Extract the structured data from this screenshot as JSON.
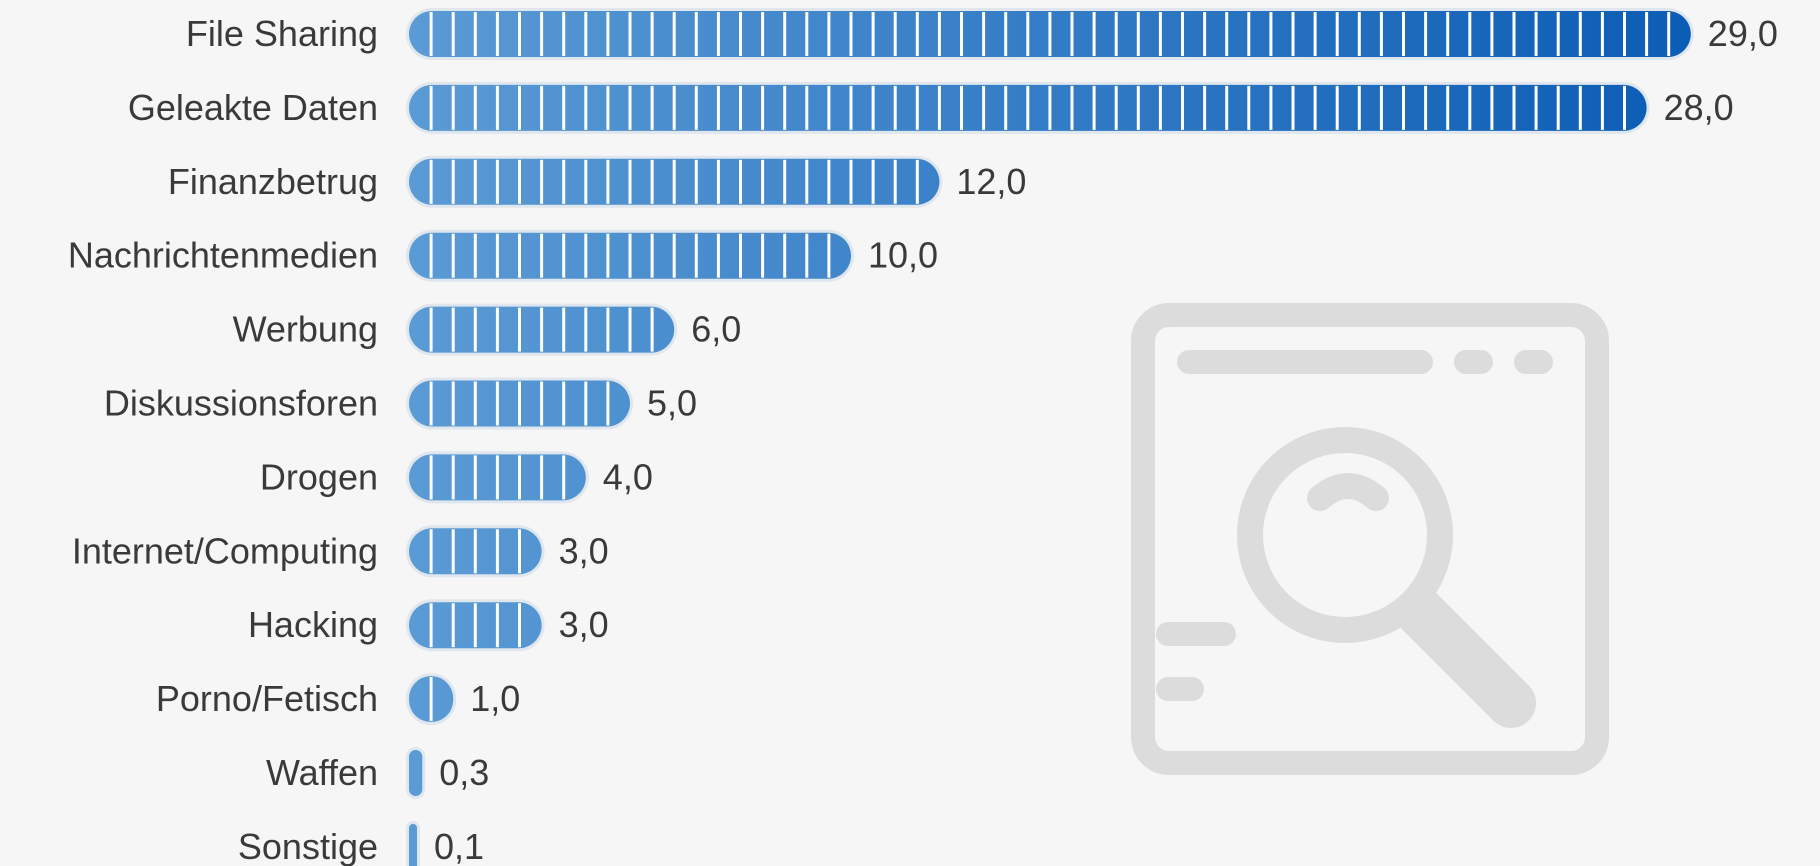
{
  "chart_data": {
    "type": "bar",
    "orientation": "horizontal",
    "categories": [
      "File Sharing",
      "Geleakte Daten",
      "Finanzbetrug",
      "Nachrichtenmedien",
      "Werbung",
      "Diskussionsforen",
      "Drogen",
      "Internet/Computing",
      "Hacking",
      "Porno/Fetisch",
      "Waffen",
      "Sonstige"
    ],
    "values": [
      29.0,
      28.0,
      12.0,
      10.0,
      6.0,
      5.0,
      4.0,
      3.0,
      3.0,
      1.0,
      0.3,
      0.1
    ],
    "value_labels": [
      "29,0",
      "28,0",
      "12,0",
      "10,0",
      "6,0",
      "5,0",
      "4,0",
      "3,0",
      "3,0",
      "1,0",
      "0,3",
      "0,1"
    ],
    "xlim": [
      0,
      29
    ],
    "grid": false,
    "legend": "none",
    "colors": {
      "bar_start": "#5b9bd5",
      "bar_end": "#0b5cb5",
      "segment_divider": "#ffffff",
      "bar_outline": "#dfe6ee",
      "label_text": "#3a3a3a",
      "watermark": "#dcdcdc",
      "background": "#f6f6f6"
    },
    "watermark_icon": "browser-magnifier-icon"
  }
}
